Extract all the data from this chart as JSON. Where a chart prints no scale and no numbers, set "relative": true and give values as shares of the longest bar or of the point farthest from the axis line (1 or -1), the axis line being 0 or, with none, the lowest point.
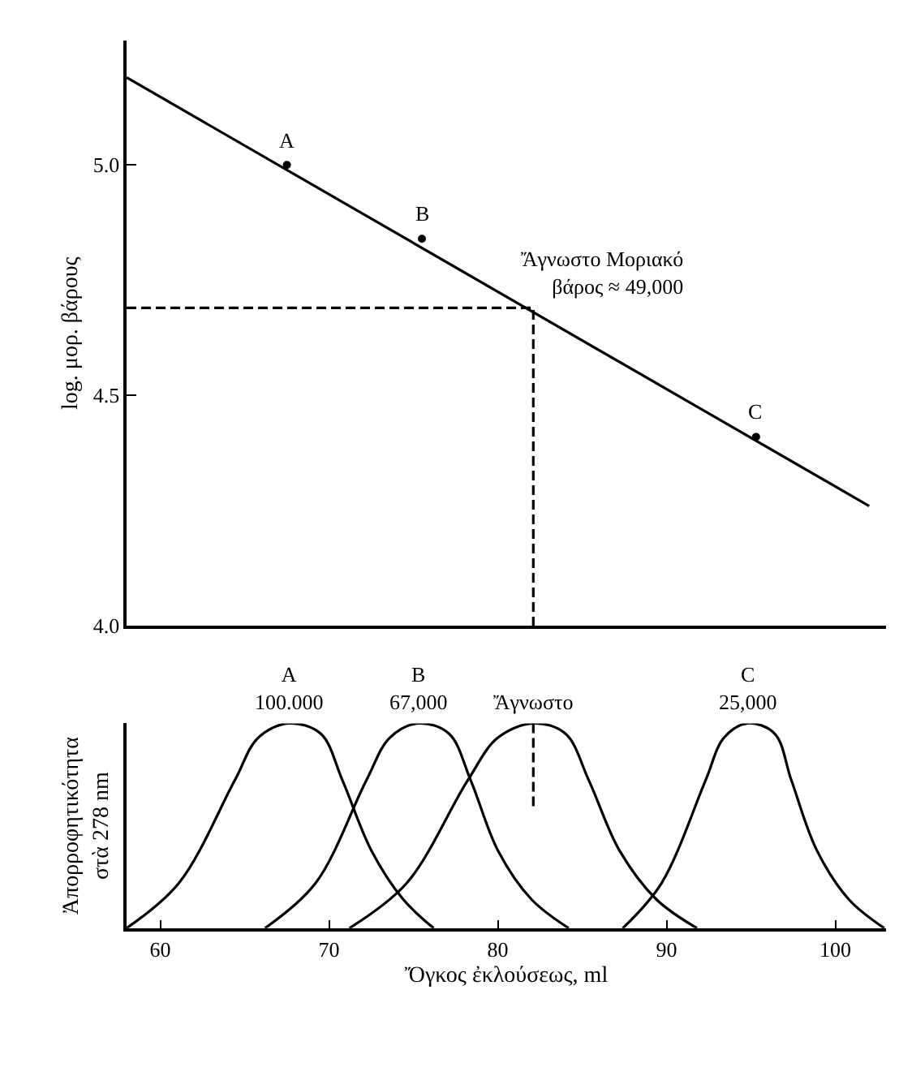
{
  "chart_data": [
    {
      "type": "line",
      "ylabel": "log. μορ. βάρους",
      "xlim": [
        58,
        103
      ],
      "ylim": [
        4.0,
        5.27
      ],
      "yticks": [
        {
          "value": 4.0,
          "label": "4.0"
        },
        {
          "value": 4.5,
          "label": "4.5"
        },
        {
          "value": 5.0,
          "label": "5.0"
        }
      ],
      "tick_labels": "y",
      "grid": false,
      "series": [
        {
          "type": "line",
          "color": "#000000",
          "x": [
            58,
            102.0
          ],
          "values": [
            5.19,
            4.26
          ]
        },
        {
          "type": "scatter",
          "color": "#000000",
          "marker": "circle",
          "x": [
            67.5,
            75.5,
            95.3
          ],
          "values": [
            5.0,
            4.84,
            4.41
          ]
        },
        {
          "type": "line",
          "color": "#000000",
          "line_style": "dashed",
          "x": [
            58,
            82.1,
            82.1
          ],
          "values": [
            4.69,
            4.69,
            4.0
          ]
        }
      ],
      "annotations": [
        {
          "text": "A",
          "x": 67.5,
          "y": 5.0
        },
        {
          "text": "B",
          "x": 75.5,
          "y": 4.84
        },
        {
          "text": "C",
          "x": 95.3,
          "y": 4.41
        },
        {
          "text": "Ἄγνωστο Μοριακό\nβάρος ≈ 49,000",
          "x": 82.1,
          "y": 4.69
        }
      ]
    },
    {
      "type": "line",
      "relative": true,
      "xlabel": "Ὄγκος ἐκλούσεως, ml",
      "ylabel": "Ἀπορροφητικότητα\nστὰ 278 nm",
      "xlim": [
        58,
        103
      ],
      "xticks": [
        60,
        70,
        80,
        90,
        100
      ],
      "tick_labels": "x",
      "grid": false,
      "series": [
        {
          "color": "#000000",
          "x": [
            58.0,
            61.1,
            64.4,
            65.8,
            67.6,
            69.5,
            70.8,
            72.5,
            74.4,
            76.2
          ],
          "values": [
            0,
            0.22,
            0.72,
            0.93,
            1,
            0.95,
            0.72,
            0.38,
            0.14,
            0
          ]
        },
        {
          "color": "#000000",
          "x": [
            66.2,
            69.2,
            72.2,
            73.6,
            75.3,
            77.1,
            78.4,
            80.0,
            82.0,
            84.2
          ],
          "values": [
            0,
            0.22,
            0.72,
            0.93,
            1,
            0.95,
            0.72,
            0.38,
            0.14,
            0
          ]
        },
        {
          "color": "#000000",
          "x": [
            71.2,
            74.6,
            78.2,
            80.0,
            82.1,
            84.0,
            85.4,
            87.2,
            89.4,
            91.8
          ],
          "values": [
            0,
            0.22,
            0.72,
            0.93,
            1,
            0.95,
            0.72,
            0.38,
            0.14,
            0
          ]
        },
        {
          "color": "#000000",
          "x": [
            87.4,
            89.7,
            92.3,
            93.4,
            94.8,
            96.4,
            97.4,
            98.9,
            100.8,
            102.9
          ],
          "values": [
            0,
            0.22,
            0.72,
            0.93,
            1,
            0.95,
            0.72,
            0.38,
            0.14,
            0
          ]
        },
        {
          "color": "#000000",
          "line_style": "dashed",
          "x": [
            82.1,
            82.1
          ],
          "values": [
            1,
            0.59
          ]
        }
      ],
      "annotations": [
        {
          "text": "A\n100.000",
          "x": 67.6,
          "y": 1
        },
        {
          "text": "B\n67,000",
          "x": 75.3,
          "y": 1
        },
        {
          "text": "Ἄγνωστο",
          "x": 82.1,
          "y": 1
        },
        {
          "text": "C\n25,000",
          "x": 94.8,
          "y": 1
        }
      ]
    }
  ]
}
